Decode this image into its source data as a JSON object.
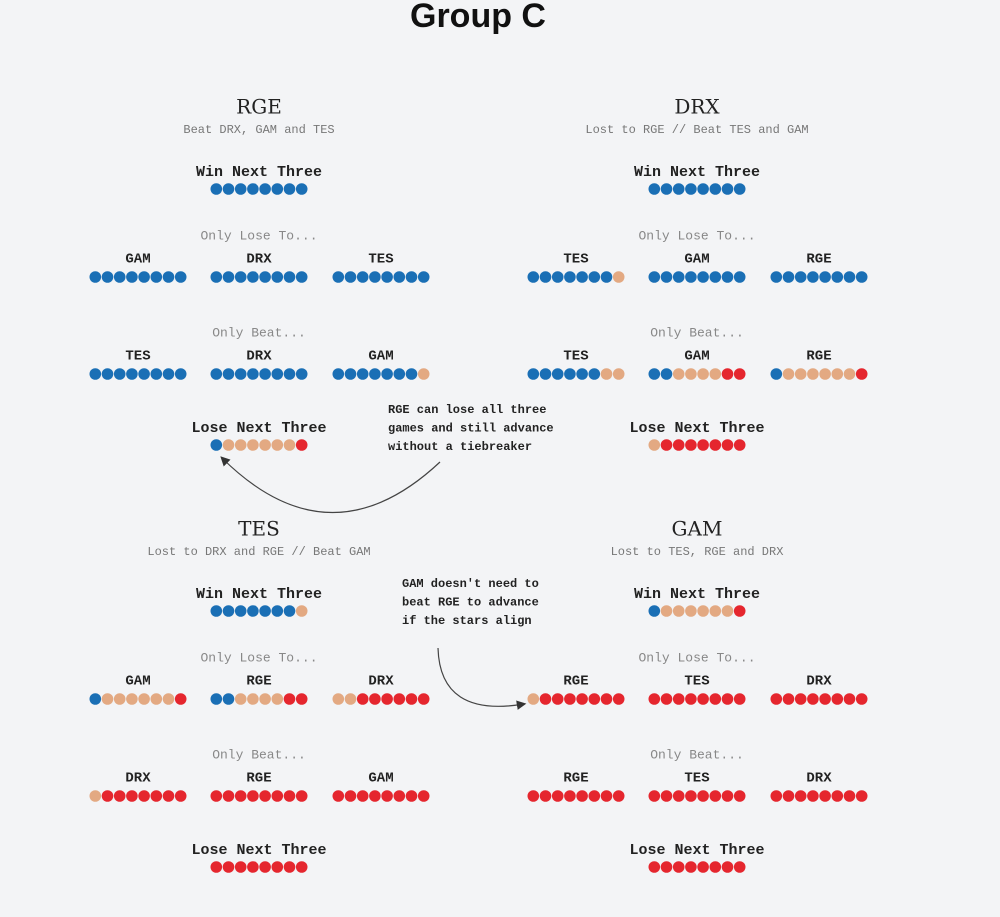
{
  "title": "Group C",
  "palette": {
    "b": "#1a6fb5",
    "t": "#e3a982",
    "r": "#e5262e"
  },
  "teams": [
    {
      "name": "RGE",
      "subtitle": "Beat DRX, GAM and TES",
      "win_next_three": {
        "label": "Win Next Three",
        "dots": "bbbbbbbb"
      },
      "only_lose_to": {
        "label": "Only Lose To...",
        "options": [
          {
            "opponent": "GAM",
            "dots": "bbbbbbbb"
          },
          {
            "opponent": "DRX",
            "dots": "bbbbbbbb"
          },
          {
            "opponent": "TES",
            "dots": "bbbbbbbb"
          }
        ]
      },
      "only_beat": {
        "label": "Only Beat...",
        "options": [
          {
            "opponent": "TES",
            "dots": "bbbbbbbb"
          },
          {
            "opponent": "DRX",
            "dots": "bbbbbbbb"
          },
          {
            "opponent": "GAM",
            "dots": "bbbbbbbt"
          }
        ]
      },
      "lose_next_three": {
        "label": "Lose Next Three",
        "dots": "bttttttr"
      }
    },
    {
      "name": "DRX",
      "subtitle": "Lost to RGE // Beat TES and GAM",
      "win_next_three": {
        "label": "Win Next Three",
        "dots": "bbbbbbbb"
      },
      "only_lose_to": {
        "label": "Only Lose To...",
        "options": [
          {
            "opponent": "TES",
            "dots": "bbbbbbbt"
          },
          {
            "opponent": "GAM",
            "dots": "bbbbbbbb"
          },
          {
            "opponent": "RGE",
            "dots": "bbbbbbbb"
          }
        ]
      },
      "only_beat": {
        "label": "Only Beat...",
        "options": [
          {
            "opponent": "TES",
            "dots": "bbbbbbtt"
          },
          {
            "opponent": "GAM",
            "dots": "bbttttrr"
          },
          {
            "opponent": "RGE",
            "dots": "bttttttr"
          }
        ]
      },
      "lose_next_three": {
        "label": "Lose Next Three",
        "dots": "trrrrrrr"
      }
    },
    {
      "name": "TES",
      "subtitle": "Lost to DRX and RGE // Beat GAM",
      "win_next_three": {
        "label": "Win Next Three",
        "dots": "bbbbbbbt"
      },
      "only_lose_to": {
        "label": "Only Lose To...",
        "options": [
          {
            "opponent": "GAM",
            "dots": "bttttttr"
          },
          {
            "opponent": "RGE",
            "dots": "bbttttrr"
          },
          {
            "opponent": "DRX",
            "dots": "ttrrrrrr"
          }
        ]
      },
      "only_beat": {
        "label": "Only Beat...",
        "options": [
          {
            "opponent": "DRX",
            "dots": "trrrrrrr"
          },
          {
            "opponent": "RGE",
            "dots": "rrrrrrrr"
          },
          {
            "opponent": "GAM",
            "dots": "rrrrrrrr"
          }
        ]
      },
      "lose_next_three": {
        "label": "Lose Next Three",
        "dots": "rrrrrrrr"
      }
    },
    {
      "name": "GAM",
      "subtitle": "Lost to TES, RGE and DRX",
      "win_next_three": {
        "label": "Win Next Three",
        "dots": "bttttttr"
      },
      "only_lose_to": {
        "label": "Only Lose To...",
        "options": [
          {
            "opponent": "RGE",
            "dots": "trrrrrrr"
          },
          {
            "opponent": "TES",
            "dots": "rrrrrrrr"
          },
          {
            "opponent": "DRX",
            "dots": "rrrrrrrr"
          }
        ]
      },
      "only_beat": {
        "label": "Only Beat...",
        "options": [
          {
            "opponent": "RGE",
            "dots": "rrrrrrrr"
          },
          {
            "opponent": "TES",
            "dots": "rrrrrrrr"
          },
          {
            "opponent": "DRX",
            "dots": "rrrrrrrr"
          }
        ]
      },
      "lose_next_three": {
        "label": "Lose Next Three",
        "dots": "rrrrrrrr"
      }
    }
  ],
  "annotations": [
    {
      "lines": [
        "RGE can lose all three",
        "games and still advance",
        "without a tiebreaker"
      ]
    },
    {
      "lines": [
        "GAM doesn't need to",
        "beat RGE to advance",
        "if the stars align"
      ]
    }
  ]
}
